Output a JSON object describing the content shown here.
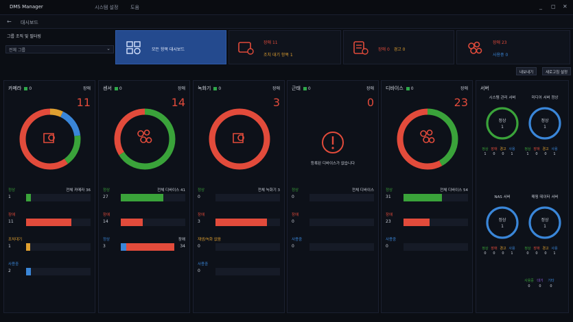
{
  "titlebar": {
    "app": "DMS Manager",
    "menu1": "시스템 설정",
    "menu2": "도움",
    "minimize": "_",
    "restore": "◻",
    "close": "✕"
  },
  "subbar": {
    "back": "←",
    "crumb": "대시보드"
  },
  "filter": {
    "label": "그룹 조직 및 필터링",
    "select": "전체 그룹"
  },
  "summary": [
    {
      "label": "모든 항목 대시보드"
    },
    {
      "line1": "장애 11",
      "line2": "조치 대기 항목 1"
    },
    {
      "line1": "장애 0",
      "line2": "경고 0"
    },
    {
      "line1": "장애 23",
      "line2": "사용중 0"
    }
  ],
  "actions": {
    "btn1": "내보내기",
    "btn2": "새로고침 설정"
  },
  "panels": [
    {
      "title": "카메라",
      "count": "0",
      "status_label": "장애",
      "big": "11",
      "type": "donut",
      "rows": [
        {
          "label": "정상",
          "right": "전체 카메라 36",
          "value": "1",
          "fill": 0.07,
          "color": "#3aa33a",
          "lcolor": "green"
        },
        {
          "label": "장애",
          "right": "",
          "value": "11",
          "fill": 0.7,
          "color": "#e24b3b",
          "lcolor": "red"
        },
        {
          "label": "조치대기",
          "right": "",
          "value": "1",
          "fill": 0.06,
          "color": "#e0a030",
          "lcolor": "orange"
        },
        {
          "label": "사용중",
          "right": "",
          "value": "2",
          "fill": 0.07,
          "color": "#3a86d8",
          "lcolor": "blue"
        }
      ]
    },
    {
      "title": "센서",
      "count": "0",
      "status_label": "장애",
      "big": "14",
      "type": "donut",
      "rows": [
        {
          "label": "정상",
          "right": "전체 디바이스 41",
          "value": "27",
          "fill": 0.66,
          "color": "#3aa33a",
          "lcolor": "green"
        },
        {
          "label": "장애",
          "right": "",
          "value": "14",
          "fill": 0.34,
          "color": "#e24b3b",
          "lcolor": "red"
        },
        {
          "label": "정상",
          "right": "장애",
          "value": "3",
          "fill": 0.1,
          "color": "#3a86d8",
          "lcolor": "blue",
          "value2": "34"
        }
      ]
    },
    {
      "title": "녹화기",
      "count": "0",
      "status_label": "장애",
      "big": "3",
      "type": "donut",
      "rows": [
        {
          "label": "정상",
          "right": "전체 녹화기 3",
          "value": "0",
          "fill": 0,
          "color": "#3aa33a",
          "lcolor": "green"
        },
        {
          "label": "장애",
          "right": "",
          "value": "3",
          "fill": 0.8,
          "color": "#e24b3b",
          "lcolor": "red"
        },
        {
          "label": "재생/녹화 없음",
          "right": "",
          "value": "0",
          "fill": 0,
          "color": "#e0a030",
          "lcolor": "orange"
        },
        {
          "label": "사용중",
          "right": "",
          "value": "0",
          "fill": 0,
          "color": "#3a86d8",
          "lcolor": "blue"
        }
      ]
    },
    {
      "title": "근태",
      "count": "0",
      "status_label": "장애",
      "big": "0",
      "type": "empty",
      "empty_text": "등록된 디바이스가 없습니다",
      "rows": [
        {
          "label": "정상",
          "right": "전체 디바이스",
          "value": "0",
          "fill": 0,
          "color": "#3aa33a",
          "lcolor": "green"
        },
        {
          "label": "장애",
          "right": "",
          "value": "0",
          "fill": 0,
          "color": "#e24b3b",
          "lcolor": "red"
        },
        {
          "label": "사용중",
          "right": "",
          "value": "0",
          "fill": 0,
          "color": "#3a86d8",
          "lcolor": "blue"
        }
      ]
    },
    {
      "title": "디바이스",
      "count": "0",
      "status_label": "장애",
      "big": "23",
      "type": "donut",
      "rows": [
        {
          "label": "정상",
          "right": "전체 디바이스 54",
          "value": "31",
          "fill": 0.6,
          "color": "#3aa33a",
          "lcolor": "green"
        },
        {
          "label": "장애",
          "right": "",
          "value": "23",
          "fill": 0.4,
          "color": "#e24b3b",
          "lcolor": "red"
        },
        {
          "label": "사용중",
          "right": "",
          "value": "0",
          "fill": 0,
          "color": "#3a86d8",
          "lcolor": "blue"
        }
      ]
    }
  ],
  "system": {
    "title": "서버",
    "rings": [
      {
        "label": "시스템 관리 서버",
        "ring_text": "정상",
        "ring_value": "1",
        "color": "#3aa33a",
        "stats": [
          "정상",
          "장애",
          "경고",
          "사용"
        ],
        "stat_values": [
          "1",
          "0",
          "0",
          "1"
        ]
      },
      {
        "label": "미디어 서버 정상",
        "ring_text": "정상",
        "ring_value": "1",
        "color": "#3a86d8",
        "stats": [
          "정상",
          "장애",
          "경고",
          "사용"
        ],
        "stat_values": [
          "1",
          "0",
          "0",
          "1"
        ]
      },
      {
        "label": "NAS 서버",
        "ring_text": "정상",
        "ring_value": "1",
        "color": "#3a86d8",
        "stats": [
          "정상",
          "장애",
          "경고",
          "사용"
        ],
        "stat_values": [
          "0",
          "0",
          "0",
          "1"
        ]
      },
      {
        "label": "매핑 데이터 서버",
        "ring_text": "정상",
        "ring_value": "1",
        "color": "#3a86d8",
        "stats": [
          "정상",
          "장애",
          "경고",
          "사용"
        ],
        "stat_values": [
          "0",
          "0",
          "0",
          "1"
        ]
      }
    ],
    "extra": [
      "사용중",
      "대기",
      "기타"
    ],
    "extra_values": [
      "0",
      "0",
      "0"
    ]
  },
  "colors": {
    "green": "#3aa33a",
    "red": "#e24b3b",
    "orange": "#e0a030",
    "blue": "#3a86d8"
  }
}
